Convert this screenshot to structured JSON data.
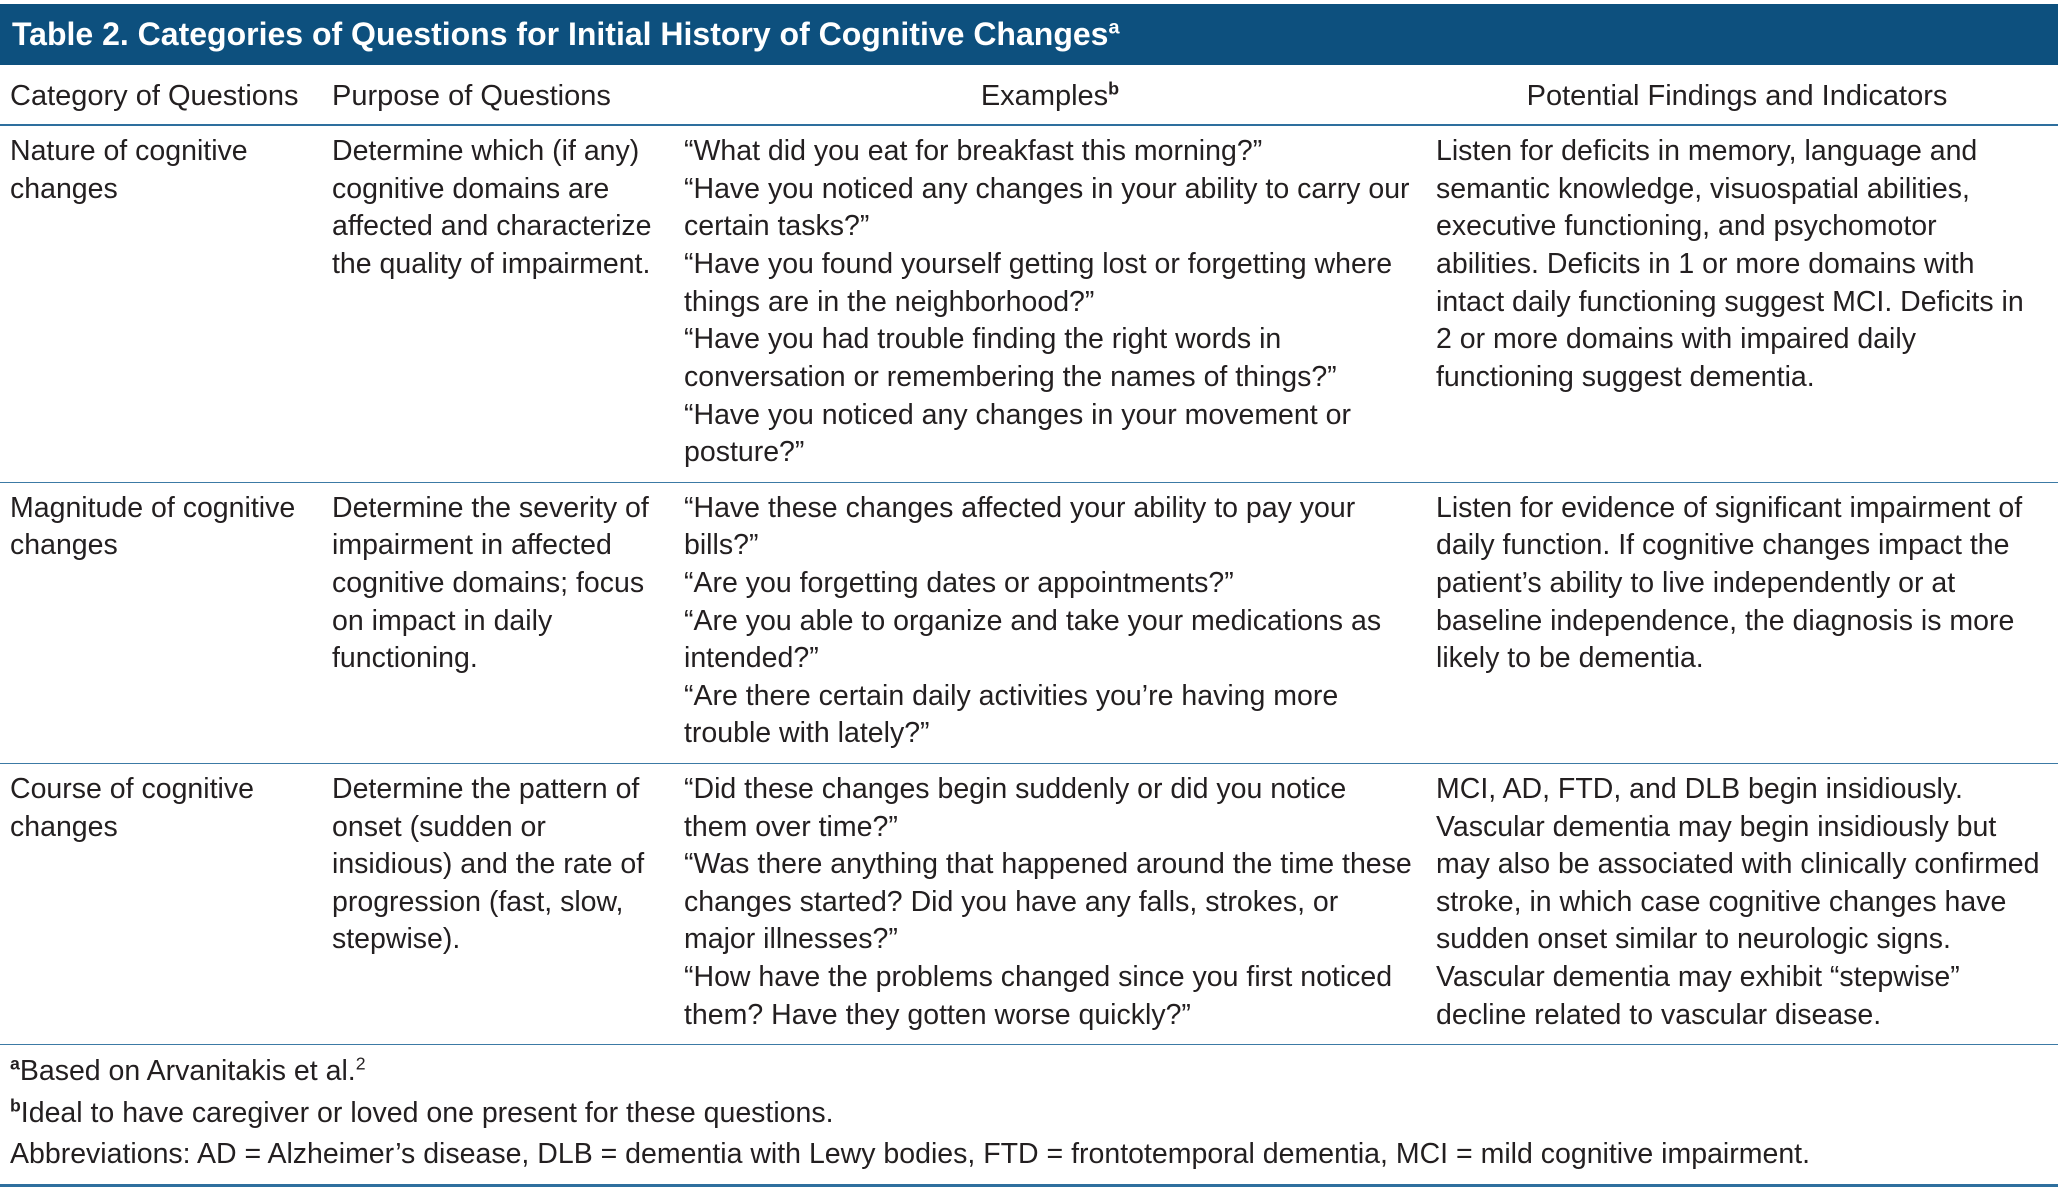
{
  "page": {
    "accent_color": "#0d507e",
    "rule_color": "#3c7aa5",
    "text_color": "#231f20"
  },
  "table": {
    "title": "Table 2. Categories of Questions for Initial History of Cognitive Changes",
    "title_sup": "a",
    "headers": {
      "category": "Category of Questions",
      "purpose": "Purpose of Questions",
      "examples": "Examples",
      "examples_sup": "b",
      "findings": "Potential Findings and Indicators"
    },
    "rows": [
      {
        "category": "Nature of cognitive changes",
        "purpose": "Determine which (if any) cognitive domains are affected and characterize the quality of impairment.",
        "examples": [
          "“What did you eat for breakfast this morning?”",
          "“Have you noticed any changes in your ability to carry our certain tasks?”",
          "“Have you found yourself getting lost or forgetting where things are in the neighborhood?”",
          "“Have you had trouble finding the right words in conversation or remembering the names of things?”",
          "“Have you noticed any changes in your movement or posture?”"
        ],
        "findings": "Listen for deficits in memory, language and semantic knowledge, visuospatial abilities, executive functioning, and psychomotor abilities. Deficits in 1 or more domains with intact daily functioning suggest MCI. Deficits in 2 or more domains with impaired daily functioning suggest dementia."
      },
      {
        "category": "Magnitude of cognitive changes",
        "purpose": "Determine the severity of impairment in affected cognitive domains; focus on impact in daily functioning.",
        "examples": [
          "“Have these changes affected your ability to pay your bills?”",
          "“Are you forgetting dates or appointments?”",
          "“Are you able to organize and take your medications as intended?”",
          "“Are there certain daily activities you’re having more trouble with lately?”"
        ],
        "findings": "Listen for evidence of significant impairment of daily function. If cognitive changes impact the patient’s ability to live independently or at baseline independence, the diagnosis is more likely to be dementia."
      },
      {
        "category": "Course of cognitive changes",
        "purpose": "Determine the pattern of onset (sudden or insidious) and the rate of progression (fast, slow, stepwise).",
        "examples": [
          "“Did these changes begin suddenly or did you notice them over time?”",
          "“Was there anything that happened around the time these changes started? Did you have any falls, strokes, or major illnesses?”",
          "“How have the problems changed since you first noticed them? Have they gotten worse quickly?”"
        ],
        "findings": "MCI, AD, FTD, and DLB begin insidiously. Vascular dementia may begin insidiously but may also be associated with clinically confirmed stroke, in which case cognitive changes have sudden onset similar to neurologic signs. Vascular dementia may exhibit “stepwise” decline related to vascular disease."
      }
    ],
    "footnotes": {
      "a_marker": "a",
      "a_text": "Based on Arvanitakis et al.",
      "a_ref": "2",
      "b_marker": "b",
      "b_text": "Ideal to have caregiver or loved one present for these questions.",
      "abbreviations": "Abbreviations: AD = Alzheimer’s disease, DLB = dementia with Lewy bodies, FTD = frontotemporal dementia, MCI = mild cognitive impairment."
    }
  }
}
